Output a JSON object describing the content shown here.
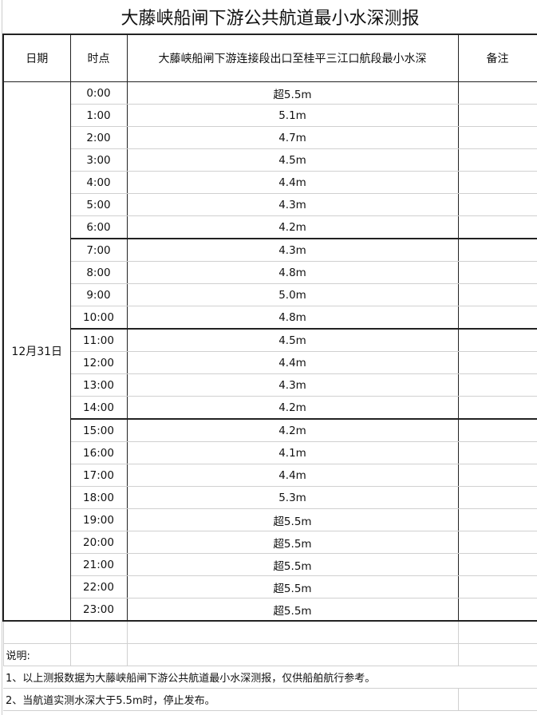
{
  "title": "大藤峡船闸下游公共航道最小水深测报",
  "headers": {
    "date": "日期",
    "time": "时点",
    "depth": "大藤峡船闸下游连接段出口至桂平三江口航段最小水深",
    "remark": "备注"
  },
  "date": "12月31日",
  "rows": [
    {
      "time": "0:00",
      "depth": "超5.5m"
    },
    {
      "time": "1:00",
      "depth": "5.1m"
    },
    {
      "time": "2:00",
      "depth": "4.7m"
    },
    {
      "time": "3:00",
      "depth": "4.5m"
    },
    {
      "time": "4:00",
      "depth": "4.4m"
    },
    {
      "time": "5:00",
      "depth": "4.3m"
    },
    {
      "time": "6:00",
      "depth": "4.2m"
    },
    {
      "time": "7:00",
      "depth": "4.3m"
    },
    {
      "time": "8:00",
      "depth": "4.8m"
    },
    {
      "time": "9:00",
      "depth": "5.0m"
    },
    {
      "time": "10:00",
      "depth": "4.8m"
    },
    {
      "time": "11:00",
      "depth": "4.5m"
    },
    {
      "time": "12:00",
      "depth": "4.4m"
    },
    {
      "time": "13:00",
      "depth": "4.3m"
    },
    {
      "time": "14:00",
      "depth": "4.2m"
    },
    {
      "time": "15:00",
      "depth": "4.2m"
    },
    {
      "time": "16:00",
      "depth": "4.1m"
    },
    {
      "time": "17:00",
      "depth": "4.4m"
    },
    {
      "time": "18:00",
      "depth": "5.3m"
    },
    {
      "time": "19:00",
      "depth": "超5.5m"
    },
    {
      "time": "20:00",
      "depth": "超5.5m"
    },
    {
      "time": "21:00",
      "depth": "超5.5m"
    },
    {
      "time": "22:00",
      "depth": "超5.5m"
    },
    {
      "time": "23:00",
      "depth": "超5.5m"
    }
  ],
  "notes": {
    "label": "说明:",
    "items": [
      "1、以上测报数据为大藤峡船闸下游公共航道最小水深测报，仅供船舶航行参考。",
      "2、当航道实测水深大于5.5m时，停止发布。"
    ]
  }
}
